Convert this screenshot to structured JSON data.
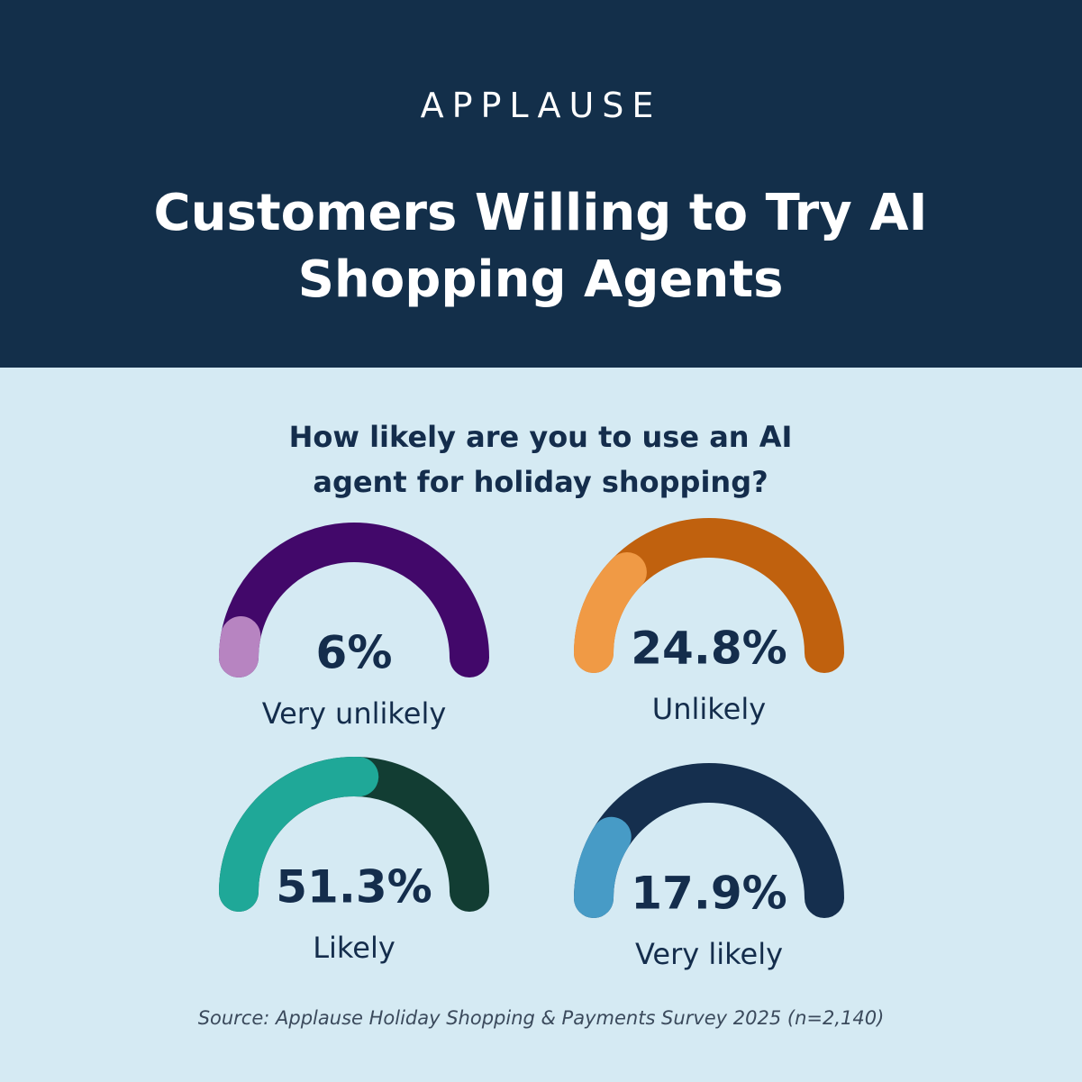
{
  "brand": "APPLAUSE",
  "chart_data": {
    "type": "gauge",
    "title": "Customers Willing to Try AI Shopping Agents",
    "subtitle": "How likely are you to use an AI agent for holiday shopping?",
    "categories": [
      "Very unlikely",
      "Unlikely",
      "Likely",
      "Very likely"
    ],
    "values": [
      6,
      24.8,
      51.3,
      17.9
    ],
    "value_labels": [
      "6%",
      "24.8%",
      "51.3%",
      "17.9%"
    ],
    "colors": [
      "#b784c1",
      "#f09a45",
      "#1fa898",
      "#479bc6"
    ],
    "track_colors": [
      "#42086a",
      "#c0610e",
      "#123d33",
      "#152f4e"
    ],
    "ylim": [
      0,
      100
    ]
  },
  "source": "Source: Applause Holiday Shopping & Payments Survey 2025 (n=2,140)"
}
